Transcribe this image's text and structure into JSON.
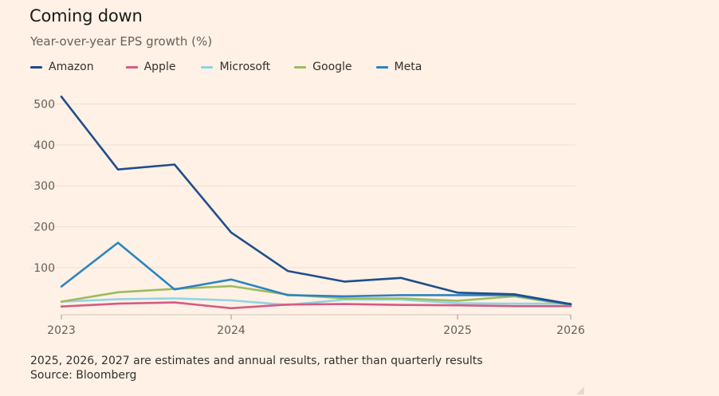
{
  "header": {
    "title": "Coming down",
    "subtitle": "Year-over-year EPS growth (%)"
  },
  "footer": {
    "note": "2025, 2026, 2027 are estimates and annual results, rather than quarterly results",
    "source": "Source: Bloomberg"
  },
  "chart_data": {
    "type": "line",
    "title": "Coming down",
    "subtitle": "Year-over-year EPS growth (%)",
    "xlabel": "",
    "ylabel": "",
    "legend_position": "top-left",
    "grid": true,
    "x": [
      0,
      1,
      2,
      3,
      4,
      5,
      6,
      7,
      8,
      9
    ],
    "x_ticks": [
      {
        "x": 0,
        "label": "2023"
      },
      {
        "x": 3,
        "label": "2024"
      },
      {
        "x": 7,
        "label": "2025"
      },
      {
        "x": 9,
        "label": "2026"
      }
    ],
    "xlim": [
      0,
      9
    ],
    "ylim": [
      -15,
      540
    ],
    "y_ticks": [
      100,
      200,
      300,
      400,
      500
    ],
    "series": [
      {
        "name": "Amazon",
        "color": "#1F4E8C",
        "values": [
          518,
          340,
          352,
          186,
          92,
          66,
          75,
          39,
          35,
          11
        ]
      },
      {
        "name": "Apple",
        "color": "#D65A84",
        "values": [
          5,
          12,
          15,
          1,
          10,
          11,
          9,
          8,
          6,
          6
        ]
      },
      {
        "name": "Microsoft",
        "color": "#90D4E4",
        "values": [
          17,
          23,
          25,
          20,
          9,
          22,
          22,
          13,
          12,
          12
        ]
      },
      {
        "name": "Google",
        "color": "#9DBB61",
        "values": [
          17,
          40,
          48,
          55,
          34,
          25,
          25,
          19,
          30,
          9
        ]
      },
      {
        "name": "Meta",
        "color": "#2C83C1",
        "values": [
          54,
          161,
          47,
          71,
          33,
          30,
          33,
          33,
          33,
          10
        ]
      }
    ]
  }
}
